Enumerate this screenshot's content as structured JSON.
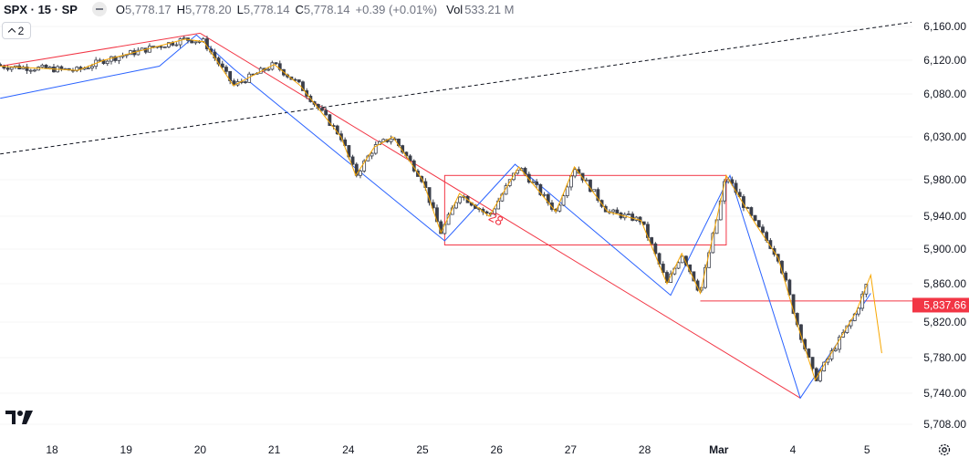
{
  "header": {
    "symbol": "SPX · 15 · SP",
    "open_label": "O",
    "open": "5,778.17",
    "high_label": "H",
    "high": "5,778.20",
    "low_label": "L",
    "low": "5,778.14",
    "close_label": "C",
    "close": "5,778.14",
    "change": "+0.39 (+0.01%)",
    "volume_label": "Vol",
    "volume": "533.21 M"
  },
  "toggle": {
    "label": "2"
  },
  "icons": {
    "collapse": "minus-pill-icon",
    "toggle": "chevron-up-icon",
    "logo": "tradingview-logo-icon",
    "settings": "gear-icon"
  },
  "chart_data": {
    "type": "candlestick",
    "price_axis": {
      "ticks": [
        6160,
        6120,
        6080,
        6030,
        5980,
        5940,
        5900,
        5860,
        5820,
        5780,
        5740,
        5708
      ],
      "tick_labels": [
        "6,160.00",
        "6,120.00",
        "6,080.00",
        "6,030.00",
        "5,980.00",
        "5,940.00",
        "5,900.00",
        "5,860.00",
        "5,820.00",
        "5,780.00",
        "5,740.00",
        "5,708.00"
      ]
    },
    "time_axis": {
      "labels": [
        "18",
        "19",
        "20",
        "21",
        "24",
        "25",
        "26",
        "27",
        "28",
        "Mar",
        "4",
        "5"
      ],
      "positions": [
        0,
        1,
        2,
        3,
        4,
        5,
        6,
        7,
        8,
        9,
        10,
        11
      ],
      "bold": [
        "Mar"
      ]
    },
    "last_price": {
      "value": 5837.66,
      "label": "5,837.66",
      "color": "#f23645"
    },
    "swing_path": [
      [
        -0.7,
        6113
      ],
      [
        0.35,
        6108
      ],
      [
        0.7,
        6120
      ],
      [
        1.8,
        6145
      ],
      [
        2.05,
        6142
      ],
      [
        2.45,
        6090
      ],
      [
        3.0,
        6115
      ],
      [
        3.35,
        6090
      ],
      [
        3.9,
        6030
      ],
      [
        4.1,
        5985
      ],
      [
        4.35,
        6018
      ],
      [
        4.6,
        6030
      ],
      [
        5.0,
        5980
      ],
      [
        5.25,
        5920
      ],
      [
        5.5,
        5965
      ],
      [
        5.9,
        5940
      ],
      [
        6.3,
        5995
      ],
      [
        6.8,
        5945
      ],
      [
        7.05,
        5995
      ],
      [
        7.5,
        5945
      ],
      [
        7.95,
        5935
      ],
      [
        8.3,
        5860
      ],
      [
        8.5,
        5895
      ],
      [
        8.75,
        5850
      ],
      [
        9.1,
        5985
      ],
      [
        9.5,
        5930
      ],
      [
        9.8,
        5890
      ],
      [
        10.05,
        5820
      ],
      [
        10.3,
        5755
      ],
      [
        10.85,
        5830
      ],
      [
        11.05,
        5870
      ],
      [
        11.2,
        5785
      ]
    ],
    "swing_color": "#f7a600",
    "zigzag": [
      [
        -0.7,
        6075
      ],
      [
        1.45,
        6113
      ],
      [
        1.95,
        6150
      ],
      [
        2.45,
        6110
      ],
      [
        5.3,
        5910
      ],
      [
        6.25,
        5998
      ],
      [
        8.35,
        5848
      ],
      [
        9.15,
        5985
      ],
      [
        10.1,
        5735
      ],
      [
        11.05,
        5850
      ]
    ],
    "zigzag_color": "#2962ff",
    "lines": [
      {
        "name": "",
        "points": [
          [
            -0.7,
            6113
          ],
          [
            2.0,
            6152
          ]
        ],
        "color": "#f23645",
        "dash": false
      },
      {
        "name": "",
        "points": [
          [
            2.0,
            6152
          ],
          [
            10.1,
            5735
          ]
        ],
        "color": "#f23645",
        "dash": false
      },
      {
        "name": "",
        "points": [
          [
            -0.7,
            6010
          ],
          [
            11.6,
            6165
          ]
        ],
        "color": "#131722",
        "dash": true
      },
      {
        "name": "",
        "points": [
          [
            8.75,
            5842
          ],
          [
            11.8,
            5842
          ]
        ],
        "color": "#f23645",
        "dash": false
      }
    ],
    "box": {
      "x": [
        5.3,
        9.1
      ],
      "y": [
        5905,
        5985
      ],
      "color": "#f23645"
    },
    "annotation": {
      "text": "28",
      "x": 5.88,
      "y": 5936,
      "color": "#f23645"
    }
  }
}
